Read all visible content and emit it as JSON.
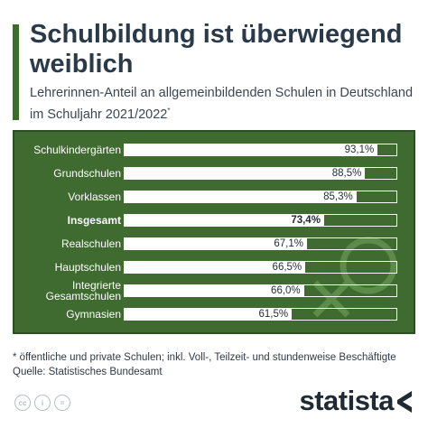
{
  "header": {
    "title": "Schulbildung ist überwiegend weiblich",
    "subtitle": "Lehrerinnen-Anteil an allgemeinbildenden Schulen in Deutschland im Schuljahr 2021/2022",
    "subtitle_mark": "*"
  },
  "chart_data": {
    "type": "bar",
    "orientation": "horizontal",
    "title": "Schulbildung ist überwiegend weiblich",
    "subtitle": "Lehrerinnen-Anteil an allgemeinbildenden Schulen in Deutschland im Schuljahr 2021/2022",
    "categories": [
      "Schulkindergärten",
      "Grundschulen",
      "Vorklassen",
      "Insgesamt",
      "Realschulen",
      "Hauptschulen",
      "Integrierte Gesamtschulen",
      "Gymnasien"
    ],
    "values": [
      93.1,
      88.5,
      85.3,
      73.4,
      67.1,
      66.5,
      66.0,
      61.5
    ],
    "value_labels": [
      "93,1%",
      "88,5%",
      "85,3%",
      "73,4%",
      "67,1%",
      "66,5%",
      "66,0%",
      "61,5%"
    ],
    "highlight_category": "Insgesamt",
    "xlim": [
      0,
      100
    ],
    "unit": "%",
    "grid": false,
    "legend": "none",
    "colors": {
      "background": "#3f6a30",
      "bar": "#ffffff",
      "text": "#ffffff",
      "accent": "#3e6b2e"
    }
  },
  "footer": {
    "footnote": "* öffentliche und private Schulen; inkl. Voll-, Teilzeit- und stundenweise Beschäftigte",
    "source": "Quelle: Statistisches Bundesamt",
    "license_icons": [
      "cc-icon",
      "by-icon",
      "equals-icon"
    ],
    "license_glyphs": [
      "cc",
      "i",
      "="
    ],
    "brand": "statista"
  }
}
